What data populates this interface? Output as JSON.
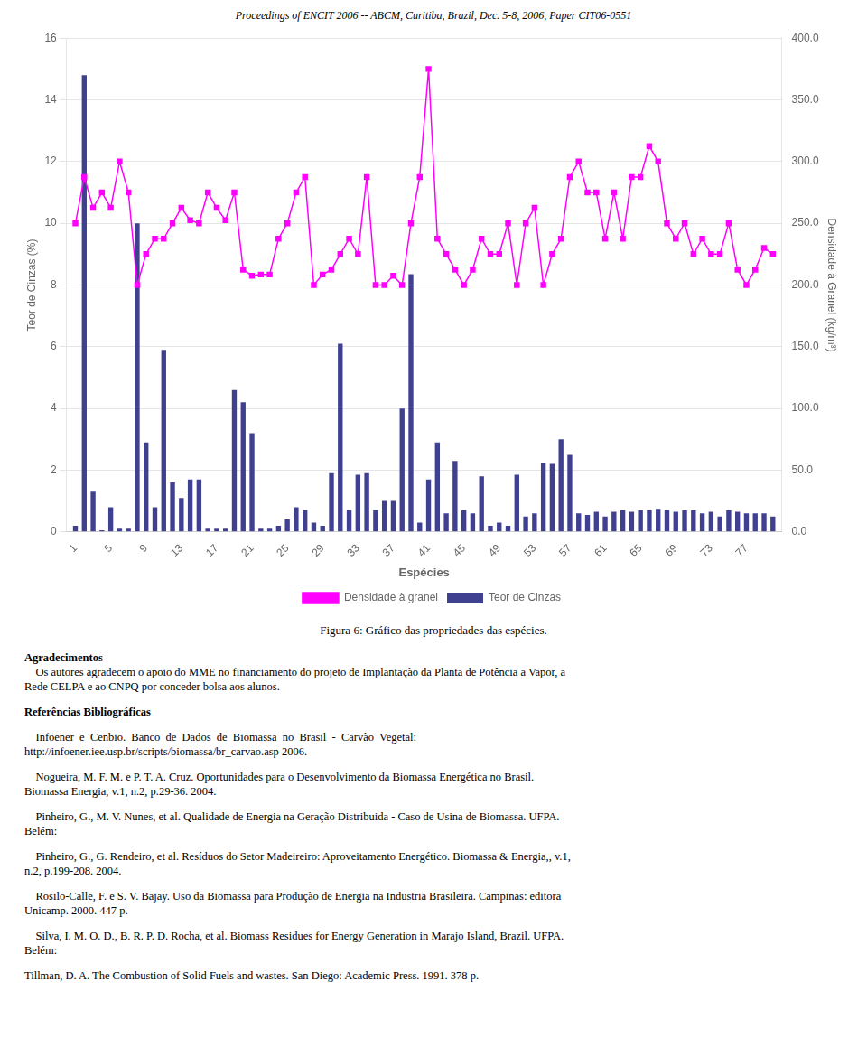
{
  "chart_data": {
    "type": "bar",
    "title": "Figura 6: Gráfico das propriedades das espécies.",
    "subtitle": "Proceedings of ENCIT 2006 -- ABCM, Curitiba, Brazil, Dec. 5-8, 2006, Paper CIT06-0551",
    "xlabel": "Espécies",
    "ylabel": "Teor de Cinzas (%)",
    "y2label": "Densidade à Granel (kg/m³)",
    "x": [
      1,
      2,
      3,
      4,
      5,
      6,
      7,
      8,
      9,
      10,
      11,
      12,
      13,
      14,
      15,
      16,
      17,
      18,
      19,
      20,
      21,
      22,
      23,
      24,
      25,
      26,
      27,
      28,
      29,
      30,
      31,
      32,
      33,
      34,
      35,
      36,
      37,
      38,
      39,
      40,
      41,
      42,
      43,
      44,
      45,
      46,
      47,
      48,
      49,
      50,
      51,
      52,
      53,
      54,
      55,
      56,
      57,
      58,
      59,
      60,
      61,
      62,
      63,
      64,
      65,
      66,
      67,
      68,
      69,
      70,
      71,
      72,
      73,
      74,
      75,
      76,
      77,
      78,
      79,
      80
    ],
    "xlim": [
      0,
      81
    ],
    "xticks": [
      1,
      5,
      9,
      13,
      17,
      21,
      25,
      29,
      33,
      37,
      41,
      45,
      49,
      53,
      57,
      61,
      65,
      69,
      73,
      77
    ],
    "ylim": [
      0,
      16
    ],
    "yticks": [
      0,
      2,
      4,
      6,
      8,
      10,
      12,
      14,
      16
    ],
    "y2lim": [
      0.0,
      400.0
    ],
    "y2ticks": [
      {
        "value": 0,
        "label": "0.0"
      },
      {
        "value": 50,
        "label": "50.0"
      },
      {
        "value": 100,
        "label": "100.0"
      },
      {
        "value": 150,
        "label": "150.0"
      },
      {
        "value": 200,
        "label": "200.0"
      },
      {
        "value": 250,
        "label": "250.0"
      },
      {
        "value": 300,
        "label": "300.0"
      },
      {
        "value": 350,
        "label": "350.0"
      },
      {
        "value": 400,
        "label": "400.0"
      }
    ],
    "grid": true,
    "legend": "bottom",
    "series": [
      {
        "name": "Teor de Cinzas",
        "type": "bar",
        "color": "#404090",
        "values": [
          0.2,
          14.8,
          1.3,
          0.05,
          0.8,
          0.1,
          0.1,
          10.0,
          2.9,
          0.8,
          5.9,
          1.6,
          1.1,
          1.7,
          1.7,
          0.1,
          0.1,
          0.1,
          4.6,
          4.2,
          3.2,
          0.1,
          0.1,
          0.2,
          0.4,
          0.8,
          0.7,
          0.3,
          0.2,
          1.9,
          6.1,
          0.7,
          1.85,
          1.9,
          0.7,
          1.0,
          1.0,
          4.0,
          8.35,
          0.3,
          1.7,
          2.9,
          0.6,
          2.3,
          0.7,
          0.6,
          1.8,
          0.2,
          0.3,
          0.2,
          1.85,
          0.5,
          0.6,
          2.25,
          2.2,
          3.0,
          2.5,
          0.6,
          0.55,
          0.65,
          0.5,
          0.65,
          0.7,
          0.65,
          0.7,
          0.7,
          0.75,
          0.7,
          0.65,
          0.7,
          0.7,
          0.6,
          0.65,
          0.5,
          0.7,
          0.65,
          0.6,
          0.6,
          0.6,
          0.5
        ]
      },
      {
        "name": "Densidade à granel",
        "type": "line",
        "color": "#ff00ff",
        "marker": "square",
        "axis": "y2",
        "values": [
          250.0,
          287.5,
          262.5,
          275.0,
          262.5,
          300.0,
          275.0,
          200.0,
          225.0,
          237.5,
          237.5,
          250.0,
          262.5,
          252.5,
          250.0,
          275.0,
          262.5,
          252.5,
          275.0,
          212.5,
          207.5,
          208.5,
          208.5,
          237.5,
          250.0,
          275.0,
          287.5,
          200.0,
          208.5,
          212.5,
          225.0,
          237.5,
          225.0,
          287.5,
          200.0,
          200.0,
          207.5,
          200.0,
          250.0,
          287.5,
          375.0,
          237.5,
          225.0,
          212.5,
          200.0,
          212.5,
          237.5,
          225.0,
          225.0,
          250.0,
          200.0,
          250.0,
          262.5,
          200.0,
          225.0,
          237.5,
          287.5,
          300.0,
          275.0,
          275.0,
          237.5,
          275.0,
          237.5,
          287.5,
          287.5,
          312.5,
          300.0,
          250.0,
          237.5,
          250.0,
          225.0,
          237.5,
          225.0,
          225.0,
          250.0,
          212.5,
          200.0,
          212.5,
          230.0,
          225.0
        ]
      }
    ],
    "annotations": [
      "Agradecimentos",
      "    Os autores agradecem o apoio do MME no financiamento do projeto de Implantação da Planta de Potência a Vapor, a",
      "Rede CELPA e ao CNPQ por conceder bolsa aos alunos.",
      "Referências Bibliográficas",
      "    Infoener  e  Cenbio.  Banco  de  Dados  de  Biomassa  no  Brasil  -  Carvão  Vegetal:",
      "http://infoener.iee.usp.br/scripts/biomassa/br_carvao.asp 2006.",
      "    Nogueira, M. F. M. e P. T. A. Cruz. Oportunidades para o Desenvolvimento da Biomassa Energética no Brasil.",
      "Biomassa Energia, v.1, n.2, p.29-36. 2004.",
      "    Pinheiro, G., M. V. Nunes, et al. Qualidade de Energia na Geração Distribuida - Caso de Usina de Biomassa. UFPA.",
      "Belém:",
      "    Pinheiro, G., G. Rendeiro, et al. Resíduos do Setor Madeireiro: Aproveitamento Energético. Biomassa & Energia,, v.1,",
      "n.2, p.199-208. 2004.",
      "    Rosilo-Calle, F. e S. V. Bajay. Uso da Biomassa para Produção de Energia na Industria Brasileira. Campinas: editora",
      "Unicamp. 2000. 447 p.",
      "    Silva, I. M. O. D., B. R. P. D. Rocha, et al. Biomass Residues for Energy Generation in Marajo Island, Brazil. UFPA.",
      "Belém:",
      "Tillman, D. A. The Combustion of Solid Fuels and wastes. San Diego: Academic Press. 1991. 378 p."
    ]
  }
}
